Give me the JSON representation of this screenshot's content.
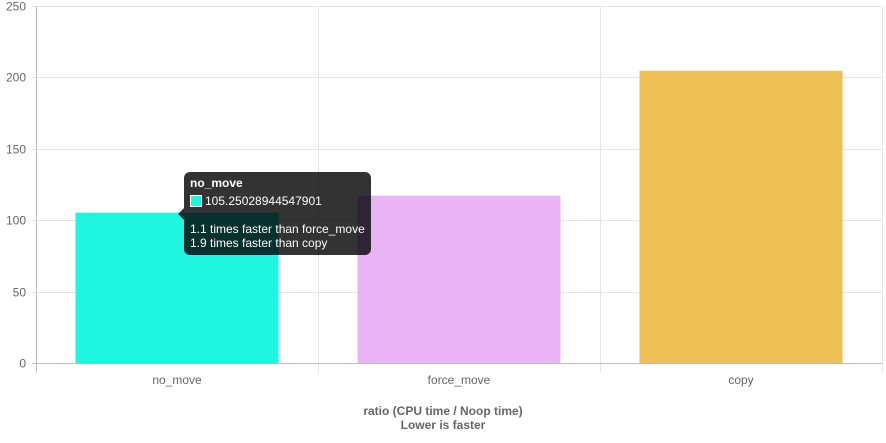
{
  "chart_data": {
    "type": "bar",
    "categories": [
      "no_move",
      "force_move",
      "copy"
    ],
    "values": [
      105.25028944547901,
      117.2,
      204.6
    ],
    "colors": [
      "#20f5e0",
      "#e9b4f4",
      "#edc156"
    ],
    "xlabel_lines": [
      "ratio (CPU time / Noop time)",
      "Lower is faster"
    ],
    "ylabel": "",
    "ylim": [
      0,
      250
    ],
    "yticks": [
      "0",
      "50",
      "100",
      "150",
      "200",
      "250"
    ],
    "grid": true,
    "legend": "none"
  },
  "tooltip": {
    "title": "no_move",
    "value": "105.25028944547901",
    "swatch_color": "#20f5e0",
    "footer": [
      "1.1 times faster than force_move",
      "1.9 times faster than copy"
    ]
  }
}
